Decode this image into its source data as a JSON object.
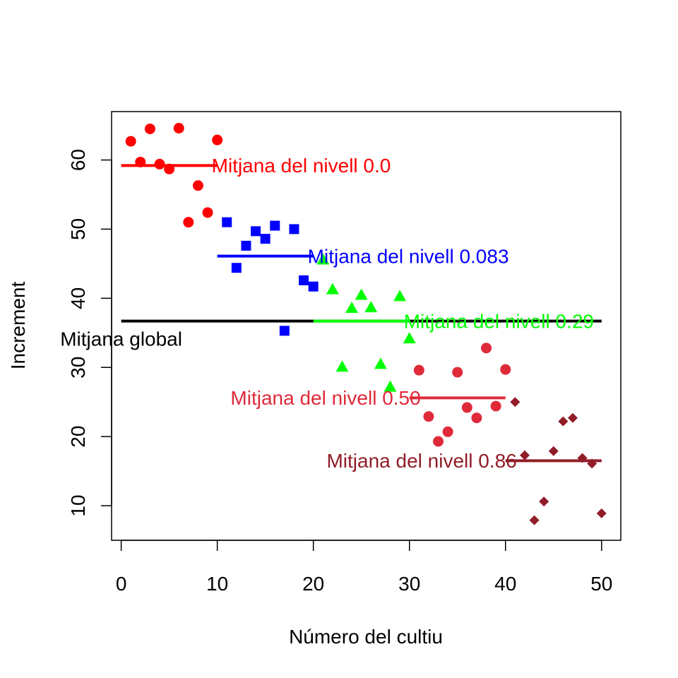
{
  "chart_data": {
    "type": "scatter",
    "xlabel": "Número del cultiu",
    "ylabel": "Increment",
    "xlim": [
      -1,
      52
    ],
    "ylim": [
      5,
      67
    ],
    "xticks": [
      "0",
      "10",
      "20",
      "30",
      "40",
      "50"
    ],
    "yticks": [
      "10",
      "20",
      "30",
      "40",
      "50",
      "60"
    ],
    "grid": false,
    "overall_mean": {
      "label": "Mitjana global",
      "value": 36.7,
      "x": [
        0,
        50
      ],
      "color": "#000000"
    },
    "series": [
      {
        "marker": "circle",
        "color": "#ff0000",
        "x": [
          1,
          2,
          3,
          4,
          5,
          6,
          7,
          8,
          9,
          10
        ],
        "y": [
          62.7,
          59.7,
          64.5,
          59.4,
          58.7,
          64.6,
          51.0,
          56.3,
          52.4,
          62.9
        ],
        "mean": {
          "label": "Mitjana del nivell 0.0",
          "value": 59.2,
          "x": [
            0,
            10
          ]
        }
      },
      {
        "marker": "square",
        "color": "#0000ff",
        "x": [
          11,
          12,
          13,
          14,
          15,
          16,
          17,
          18,
          19,
          20
        ],
        "y": [
          51.0,
          44.4,
          47.6,
          49.7,
          48.6,
          50.5,
          35.3,
          50.0,
          42.6,
          41.7
        ],
        "mean": {
          "label": "Mitjana del nivell 0.083",
          "value": 46.1,
          "x": [
            10,
            20
          ]
        }
      },
      {
        "marker": "triangle",
        "color": "#00ff00",
        "x": [
          21,
          22,
          23,
          24,
          25,
          26,
          27,
          28,
          29,
          30
        ],
        "y": [
          45.6,
          41.3,
          30.1,
          38.6,
          40.5,
          38.7,
          30.5,
          27.2,
          40.3,
          34.2
        ],
        "mean": {
          "label": "Mitjana del nivell 0.29",
          "value": 36.7,
          "x": [
            20,
            30
          ]
        }
      },
      {
        "marker": "circle",
        "color": "#df2a3a",
        "x": [
          31,
          32,
          33,
          34,
          35,
          36,
          37,
          38,
          39,
          40
        ],
        "y": [
          29.6,
          22.9,
          19.3,
          20.7,
          29.3,
          24.2,
          22.7,
          32.8,
          24.4,
          29.7
        ],
        "mean": {
          "label": "Mitjana del nivell 0.50",
          "value": 25.6,
          "x": [
            30,
            40
          ]
        }
      },
      {
        "marker": "diamond",
        "color": "#911d28",
        "x": [
          41,
          42,
          43,
          44,
          45,
          46,
          47,
          48,
          49,
          50
        ],
        "y": [
          25.0,
          17.3,
          7.9,
          10.6,
          17.9,
          22.2,
          22.7,
          16.9,
          16.1,
          8.9
        ],
        "mean": {
          "label": "Mitjana del nivell 0.86",
          "value": 16.5,
          "x": [
            40,
            50
          ]
        }
      }
    ]
  }
}
